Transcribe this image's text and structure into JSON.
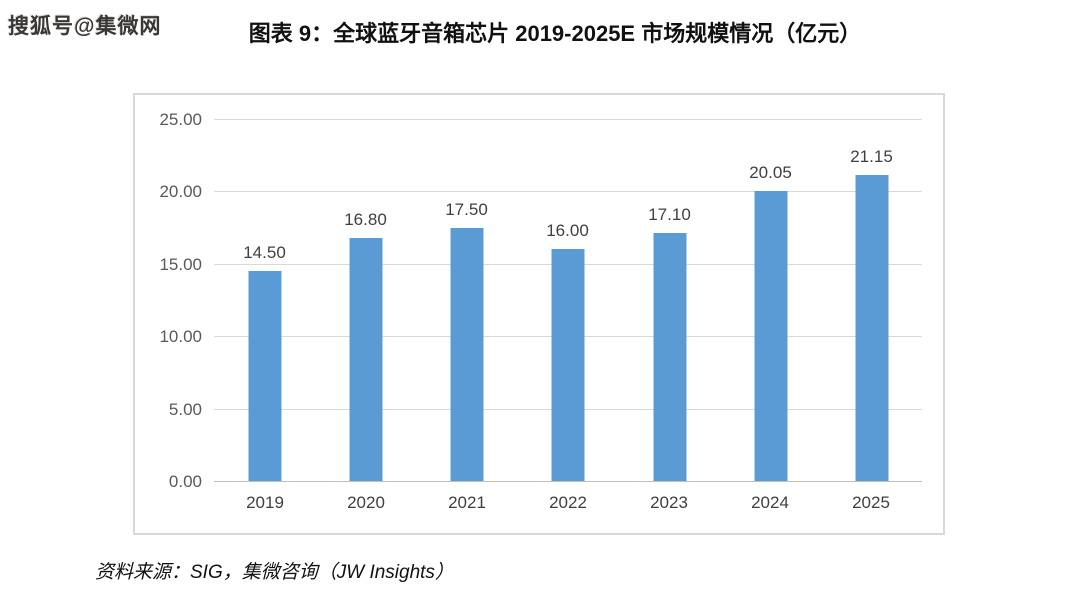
{
  "watermark": {
    "text": "搜狐号@集微网"
  },
  "header": {
    "title": "图表 9：全球蓝牙音箱芯片 2019-2025E 市场规模情况（亿元）"
  },
  "footer": {
    "source": "资料来源：SIG，集微咨询（JW Insights）"
  },
  "colors": {
    "bar": "#5b9bd5",
    "gridline": "#d9d9d9",
    "axis_line": "#bfbfbf",
    "chart_border": "#d9d9d9",
    "y_tick_label": "#595959",
    "x_tick_label": "#404040",
    "data_label": "#404040",
    "title": "#111111",
    "background": "#ffffff"
  },
  "chart_data": {
    "type": "bar",
    "title": "图表 9：全球蓝牙音箱芯片 2019-2025E 市场规模情况（亿元）",
    "categories": [
      "2019",
      "2020",
      "2021",
      "2022",
      "2023",
      "2024",
      "2025"
    ],
    "values": [
      14.5,
      16.8,
      17.5,
      16.0,
      17.1,
      20.05,
      21.15
    ],
    "value_labels": [
      "14.50",
      "16.80",
      "17.50",
      "16.00",
      "17.10",
      "20.05",
      "21.15"
    ],
    "xlabel": "",
    "ylabel": "",
    "ylim": [
      0,
      25
    ],
    "ytick_interval": 5,
    "ytick_labels_top_to_bottom": [
      "25.00",
      "20.00",
      "15.00",
      "10.00",
      "5.00",
      "0.00"
    ],
    "grid": true,
    "legend": false,
    "unit": "亿元",
    "source": "资料来源：SIG，集微咨询（JW Insights）"
  }
}
